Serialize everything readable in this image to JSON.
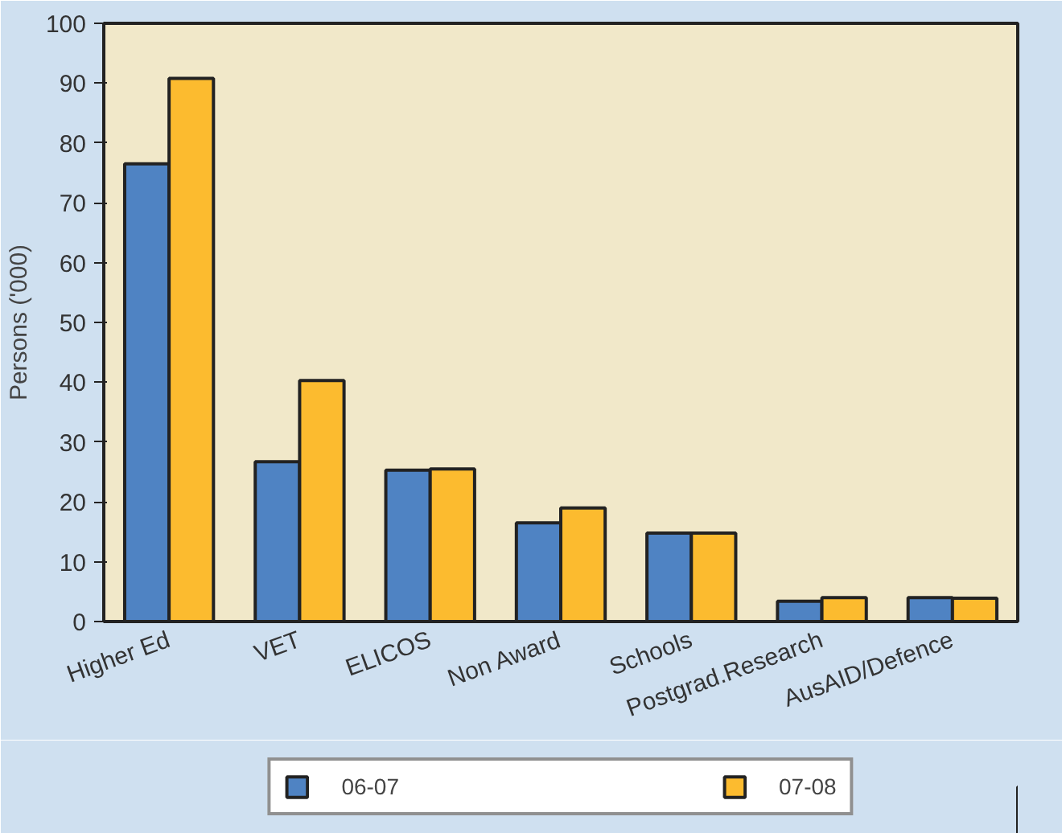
{
  "chart_data": {
    "type": "bar",
    "ylabel": "Persons ('000)",
    "categories": [
      "Higher Ed",
      "VET",
      "ELICOS",
      "Non Award",
      "Schools",
      "Postgrad.Research",
      "AusAID/Defence"
    ],
    "series": [
      {
        "name": "06-07",
        "color": "#4f83c3",
        "values": [
          76.5,
          26.7,
          25.3,
          16.5,
          14.8,
          3.4,
          4.0
        ]
      },
      {
        "name": "07-08",
        "color": "#fcbb2f",
        "values": [
          90.8,
          40.3,
          25.5,
          19.0,
          14.8,
          4.0,
          3.9
        ]
      }
    ],
    "ylim": [
      0,
      100
    ],
    "yticks": [
      0,
      10,
      20,
      30,
      40,
      50,
      60,
      70,
      80,
      90,
      100
    ],
    "grid": false,
    "legend": "bottom"
  }
}
